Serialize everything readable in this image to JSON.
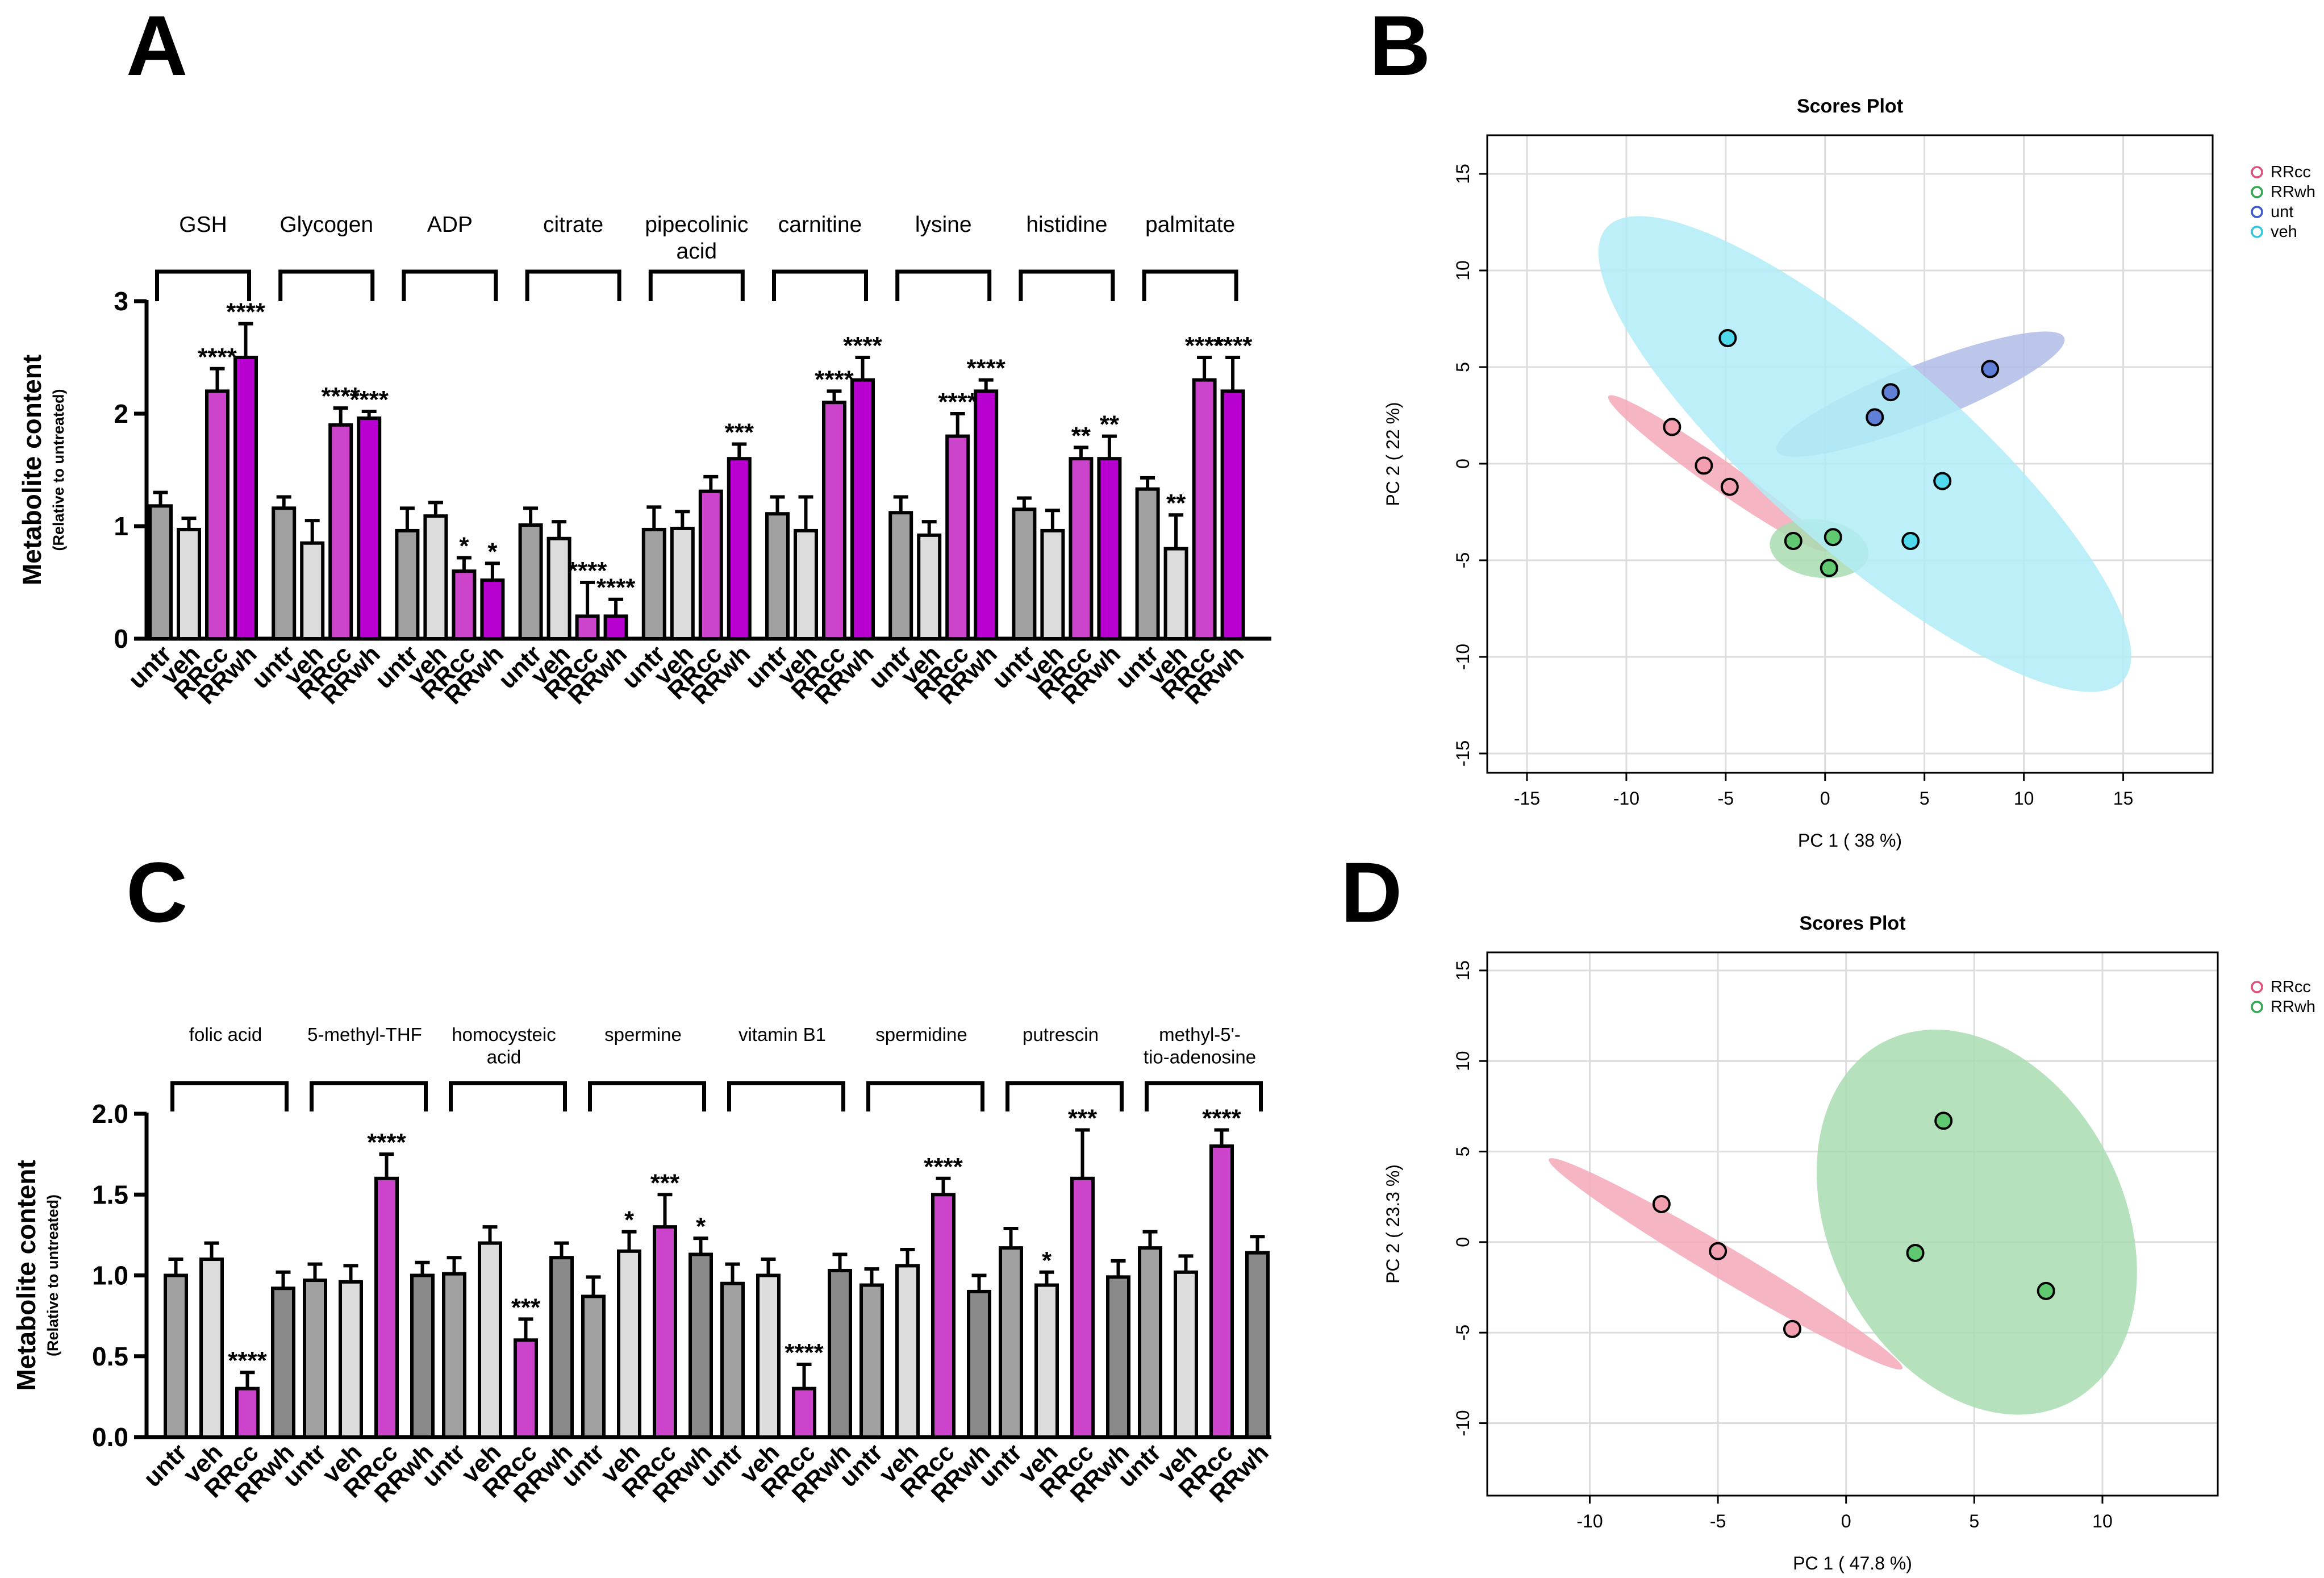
{
  "figure_panels": [
    "A",
    "B",
    "C",
    "D"
  ],
  "colors": {
    "untr": "#a0a0a0",
    "veh": "#dcdcdc",
    "RRcc": "#cc44cc",
    "RRwh": "#b800d0",
    "RRwh_C": "#8a8a8a",
    "RRcc_pt": "#f2a0b0",
    "RRcc_ell": "#f4a8b8",
    "RRwh_pt": "#60c870",
    "RRwh_ell": "#a8dcb0",
    "unt_pt": "#6080d8",
    "unt_ell": "#b0bce8",
    "veh_pt": "#50d8ec",
    "veh_ell": "#b0ecf6",
    "RRcc_legend": "#e0507a",
    "RRwh_legend": "#30a850",
    "unt_legend": "#3858c8",
    "veh_legend": "#30c8e0"
  },
  "chart_data": [
    {
      "panel": "A",
      "type": "bar",
      "ylabel": "Metabolite content",
      "ylabel_sub": "(Relative to untreated)",
      "ylim": [
        0,
        3
      ],
      "yticks": [
        "0",
        "1",
        "2",
        "3"
      ],
      "yticks_values": [
        0,
        1,
        2,
        3
      ],
      "bar_labels": [
        "untr",
        "veh",
        "RRcc",
        "RRwh"
      ],
      "bar_colors_keys": [
        "untr",
        "veh",
        "RRcc",
        "RRwh"
      ],
      "groups": [
        {
          "name": "GSH",
          "values": [
            1.18,
            0.97,
            2.2,
            2.5
          ],
          "errors": [
            0.12,
            0.1,
            0.2,
            0.3
          ],
          "sig": [
            "",
            "",
            "****",
            "****"
          ]
        },
        {
          "name": "Glycogen",
          "values": [
            1.16,
            0.85,
            1.9,
            1.96
          ],
          "errors": [
            0.1,
            0.2,
            0.15,
            0.06
          ],
          "sig": [
            "",
            "",
            "****",
            "****"
          ]
        },
        {
          "name": "ADP",
          "values": [
            0.96,
            1.09,
            0.6,
            0.52
          ],
          "errors": [
            0.2,
            0.12,
            0.12,
            0.15
          ],
          "sig": [
            "",
            "",
            "*",
            "*"
          ]
        },
        {
          "name": "citrate",
          "values": [
            1.01,
            0.89,
            0.2,
            0.2
          ],
          "errors": [
            0.15,
            0.15,
            0.3,
            0.15
          ],
          "sig": [
            "",
            "",
            "****",
            "****"
          ]
        },
        {
          "name": "pipecolinic\nacid",
          "values": [
            0.97,
            0.98,
            1.31,
            1.6
          ],
          "errors": [
            0.2,
            0.15,
            0.13,
            0.13
          ],
          "sig": [
            "",
            "",
            "",
            "***"
          ]
        },
        {
          "name": "carnitine",
          "values": [
            1.11,
            0.96,
            2.1,
            2.3
          ],
          "errors": [
            0.15,
            0.3,
            0.1,
            0.2
          ],
          "sig": [
            "",
            "",
            "****",
            "****"
          ]
        },
        {
          "name": "lysine",
          "values": [
            1.12,
            0.92,
            1.8,
            2.2
          ],
          "errors": [
            0.14,
            0.12,
            0.2,
            0.1
          ],
          "sig": [
            "",
            "",
            "****",
            "****"
          ]
        },
        {
          "name": "histidine",
          "values": [
            1.15,
            0.96,
            1.6,
            1.6
          ],
          "errors": [
            0.1,
            0.18,
            0.1,
            0.2
          ],
          "sig": [
            "",
            "",
            "**",
            "**"
          ]
        },
        {
          "name": "palmitate",
          "values": [
            1.33,
            0.8,
            2.3,
            2.2
          ],
          "errors": [
            0.1,
            0.3,
            0.2,
            0.3
          ],
          "sig": [
            "",
            "**",
            "****",
            "****"
          ]
        }
      ]
    },
    {
      "panel": "C",
      "type": "bar",
      "ylabel": "Metabolite content",
      "ylabel_sub": "(Relative to untreated)",
      "ylim": [
        0,
        2
      ],
      "yticks": [
        "0.0",
        "0.5",
        "1.0",
        "1.5",
        "2.0"
      ],
      "yticks_values": [
        0,
        0.5,
        1,
        1.5,
        2
      ],
      "bar_labels": [
        "untr",
        "veh",
        "RRcc",
        "RRwh"
      ],
      "bar_colors_keys": [
        "untr",
        "veh",
        "RRcc",
        "RRwh_C"
      ],
      "groups": [
        {
          "name": "folic acid",
          "values": [
            1.0,
            1.1,
            0.3,
            0.92
          ],
          "errors": [
            0.1,
            0.1,
            0.1,
            0.1
          ],
          "sig": [
            "",
            "",
            "****",
            ""
          ]
        },
        {
          "name": "5-methyl-THF",
          "values": [
            0.97,
            0.96,
            1.6,
            1.0
          ],
          "errors": [
            0.1,
            0.1,
            0.15,
            0.08
          ],
          "sig": [
            "",
            "",
            "****",
            ""
          ]
        },
        {
          "name": "homocysteic\nacid",
          "values": [
            1.01,
            1.2,
            0.6,
            1.11
          ],
          "errors": [
            0.1,
            0.1,
            0.13,
            0.09
          ],
          "sig": [
            "",
            "",
            "***",
            ""
          ]
        },
        {
          "name": "spermine",
          "values": [
            0.87,
            1.15,
            1.3,
            1.13
          ],
          "errors": [
            0.12,
            0.12,
            0.2,
            0.1
          ],
          "sig": [
            "",
            "*",
            "***",
            "*"
          ]
        },
        {
          "name": "vitamin B1",
          "values": [
            0.95,
            1.0,
            0.3,
            1.03
          ],
          "errors": [
            0.12,
            0.1,
            0.15,
            0.1
          ],
          "sig": [
            "",
            "",
            "****",
            ""
          ]
        },
        {
          "name": "spermidine",
          "values": [
            0.94,
            1.06,
            1.5,
            0.9
          ],
          "errors": [
            0.1,
            0.1,
            0.1,
            0.1
          ],
          "sig": [
            "",
            "",
            "****",
            ""
          ]
        },
        {
          "name": "putrescin",
          "values": [
            1.17,
            0.94,
            1.6,
            0.99
          ],
          "errors": [
            0.12,
            0.08,
            0.3,
            0.1
          ],
          "sig": [
            "",
            "*",
            "***",
            ""
          ]
        },
        {
          "name": "methyl-5'-\ntio-adenosine",
          "values": [
            1.17,
            1.02,
            1.8,
            1.14
          ],
          "errors": [
            0.1,
            0.1,
            0.1,
            0.1
          ],
          "sig": [
            "",
            "",
            "****",
            ""
          ]
        }
      ]
    },
    {
      "panel": "B",
      "type": "scatter",
      "title": "Scores Plot",
      "xlabel": "PC 1 ( 38 %)",
      "ylabel": "PC 2 ( 22 %)",
      "xlim": [
        -17,
        19.5
      ],
      "ylim": [
        -16,
        17
      ],
      "xticks": [
        -15,
        -10,
        -5,
        0,
        5,
        10,
        15
      ],
      "yticks": [
        -15,
        -10,
        -5,
        0,
        5,
        10,
        15
      ],
      "legend": [
        "RRcc",
        "RRwh",
        "unt",
        "veh"
      ],
      "series": [
        {
          "name": "RRcc",
          "points": [
            [
              -7.7,
              1.9
            ],
            [
              -6.1,
              -0.1
            ],
            [
              -4.8,
              -1.2
            ]
          ],
          "ellipse": {
            "cx": -5.4,
            "cy": -0.5,
            "rx": 6.8,
            "ry": 0.75,
            "angle_deg": -36
          }
        },
        {
          "name": "RRwh",
          "points": [
            [
              -1.6,
              -4.0
            ],
            [
              0.4,
              -3.8
            ],
            [
              0.2,
              -5.4
            ]
          ],
          "ellipse": {
            "cx": -0.3,
            "cy": -4.4,
            "rx": 2.5,
            "ry": 1.5,
            "angle_deg": -8
          }
        },
        {
          "name": "unt",
          "points": [
            [
              3.3,
              3.7
            ],
            [
              2.5,
              2.4
            ],
            [
              8.3,
              4.9
            ]
          ],
          "ellipse": {
            "cx": 4.8,
            "cy": 3.6,
            "rx": 7.8,
            "ry": 1.5,
            "angle_deg": 22
          }
        },
        {
          "name": "veh",
          "points": [
            [
              -4.9,
              6.5
            ],
            [
              5.9,
              -0.9
            ],
            [
              4.3,
              -4.0
            ]
          ],
          "ellipse": {
            "cx": 2.0,
            "cy": 0.5,
            "rx": 17.5,
            "ry": 5.0,
            "angle_deg": -42
          }
        }
      ]
    },
    {
      "panel": "D",
      "type": "scatter",
      "title": "Scores Plot",
      "xlabel": "PC 1 ( 47.8 %)",
      "ylabel": "PC 2 ( 23.3 %)",
      "xlim": [
        -14,
        14.5
      ],
      "ylim": [
        -14,
        16
      ],
      "xticks": [
        -10,
        -5,
        0,
        5,
        10
      ],
      "yticks": [
        -10,
        -5,
        0,
        5,
        10,
        15
      ],
      "legend": [
        "RRcc",
        "RRwh"
      ],
      "series": [
        {
          "name": "RRcc",
          "points": [
            [
              -7.2,
              2.1
            ],
            [
              -5.0,
              -0.5
            ],
            [
              -2.1,
              -4.8
            ]
          ],
          "ellipse": {
            "cx": -4.7,
            "cy": -1.2,
            "rx": 9.0,
            "ry": 0.75,
            "angle_deg": -40
          }
        },
        {
          "name": "RRwh",
          "points": [
            [
              3.8,
              6.7
            ],
            [
              2.7,
              -0.6
            ],
            [
              7.8,
              -2.7
            ]
          ],
          "ellipse": {
            "cx": 5.1,
            "cy": 1.1,
            "rx": 10.6,
            "ry": 5.9,
            "angle_deg": -70
          }
        }
      ]
    }
  ]
}
